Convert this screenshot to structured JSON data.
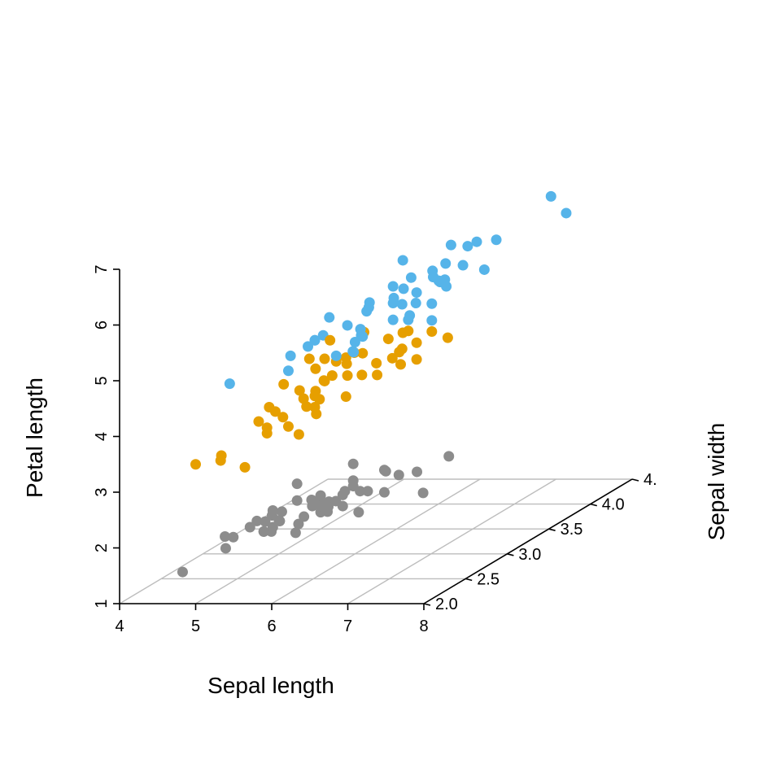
{
  "chart_data": {
    "type": "scatter3d",
    "title": "",
    "xlabel": "Sepal length",
    "ylabel": "Sepal width",
    "zlabel": "Petal length",
    "xlim": [
      4,
      8
    ],
    "ylim": [
      2.0,
      4.5
    ],
    "zlim": [
      1,
      7
    ],
    "x_ticks": [
      "4",
      "5",
      "6",
      "7",
      "8"
    ],
    "y_ticks": [
      "2.0",
      "2.5",
      "3.0",
      "3.5",
      "4.0",
      "4."
    ],
    "z_ticks": [
      "1",
      "2",
      "3",
      "4",
      "5",
      "6",
      "7"
    ],
    "grid": "floor",
    "legend": "none",
    "series": [
      {
        "color": "#8c8c8c",
        "points": [
          [
            5.1,
            3.5,
            1.4
          ],
          [
            4.9,
            3.0,
            1.4
          ],
          [
            4.7,
            3.2,
            1.3
          ],
          [
            4.6,
            3.1,
            1.5
          ],
          [
            5.0,
            3.6,
            1.4
          ],
          [
            5.4,
            3.9,
            1.7
          ],
          [
            4.6,
            3.4,
            1.4
          ],
          [
            5.0,
            3.4,
            1.5
          ],
          [
            4.4,
            2.9,
            1.4
          ],
          [
            4.9,
            3.1,
            1.5
          ],
          [
            5.4,
            3.7,
            1.5
          ],
          [
            4.8,
            3.4,
            1.6
          ],
          [
            4.8,
            3.0,
            1.4
          ],
          [
            4.3,
            3.0,
            1.1
          ],
          [
            5.8,
            4.0,
            1.2
          ],
          [
            5.7,
            4.4,
            1.5
          ],
          [
            5.4,
            3.9,
            1.3
          ],
          [
            5.1,
            3.5,
            1.4
          ],
          [
            5.7,
            3.8,
            1.7
          ],
          [
            5.1,
            3.8,
            1.5
          ],
          [
            5.4,
            3.4,
            1.7
          ],
          [
            5.1,
            3.7,
            1.5
          ],
          [
            4.6,
            3.6,
            1.0
          ],
          [
            5.1,
            3.3,
            1.7
          ],
          [
            4.8,
            3.4,
            1.9
          ],
          [
            5.0,
            3.0,
            1.6
          ],
          [
            5.0,
            3.4,
            1.6
          ],
          [
            5.2,
            3.5,
            1.5
          ],
          [
            5.2,
            3.4,
            1.4
          ],
          [
            4.7,
            3.2,
            1.6
          ],
          [
            4.8,
            3.1,
            1.6
          ],
          [
            5.4,
            3.4,
            1.5
          ],
          [
            5.2,
            4.1,
            1.5
          ],
          [
            5.5,
            4.2,
            1.4
          ],
          [
            4.9,
            3.1,
            1.5
          ],
          [
            5.0,
            3.2,
            1.2
          ],
          [
            5.5,
            3.5,
            1.3
          ],
          [
            4.9,
            3.6,
            1.4
          ],
          [
            4.4,
            3.0,
            1.3
          ],
          [
            5.1,
            3.4,
            1.5
          ],
          [
            5.0,
            3.5,
            1.3
          ],
          [
            4.5,
            2.3,
            1.3
          ],
          [
            4.4,
            3.2,
            1.3
          ],
          [
            5.0,
            3.5,
            1.6
          ],
          [
            5.1,
            3.8,
            1.9
          ],
          [
            4.8,
            3.0,
            1.4
          ],
          [
            5.1,
            3.8,
            1.6
          ],
          [
            4.6,
            3.2,
            1.4
          ],
          [
            5.3,
            3.7,
            1.5
          ],
          [
            5.0,
            3.3,
            1.4
          ]
        ]
      },
      {
        "color": "#e69f00",
        "points": [
          [
            7.0,
            3.2,
            4.7
          ],
          [
            6.4,
            3.2,
            4.5
          ],
          [
            6.9,
            3.1,
            4.9
          ],
          [
            5.5,
            2.3,
            4.0
          ],
          [
            6.5,
            2.8,
            4.6
          ],
          [
            5.7,
            2.8,
            4.5
          ],
          [
            6.3,
            3.3,
            4.7
          ],
          [
            4.9,
            2.4,
            3.3
          ],
          [
            6.6,
            2.9,
            4.6
          ],
          [
            5.2,
            2.7,
            3.9
          ],
          [
            5.0,
            2.0,
            3.5
          ],
          [
            5.9,
            3.0,
            4.2
          ],
          [
            6.0,
            2.2,
            4.0
          ],
          [
            6.1,
            2.9,
            4.7
          ],
          [
            5.6,
            2.9,
            3.6
          ],
          [
            6.7,
            3.1,
            4.4
          ],
          [
            5.6,
            3.0,
            4.5
          ],
          [
            5.8,
            2.7,
            4.1
          ],
          [
            6.2,
            2.2,
            4.5
          ],
          [
            5.6,
            2.5,
            3.9
          ],
          [
            5.9,
            3.2,
            4.8
          ],
          [
            6.1,
            2.8,
            4.0
          ],
          [
            6.3,
            2.5,
            4.9
          ],
          [
            6.1,
            2.8,
            4.7
          ],
          [
            6.4,
            2.9,
            4.3
          ],
          [
            6.6,
            3.0,
            4.4
          ],
          [
            6.8,
            2.8,
            4.8
          ],
          [
            6.7,
            3.0,
            5.0
          ],
          [
            6.0,
            2.9,
            4.5
          ],
          [
            5.7,
            2.6,
            3.5
          ],
          [
            5.5,
            2.4,
            3.8
          ],
          [
            5.5,
            2.4,
            3.7
          ],
          [
            5.8,
            2.7,
            3.9
          ],
          [
            6.0,
            2.7,
            5.1
          ],
          [
            5.4,
            3.0,
            4.5
          ],
          [
            6.0,
            3.4,
            4.5
          ],
          [
            6.7,
            3.1,
            4.7
          ],
          [
            6.3,
            2.3,
            4.4
          ],
          [
            5.6,
            3.0,
            4.1
          ],
          [
            5.5,
            2.5,
            4.0
          ],
          [
            5.5,
            2.6,
            4.4
          ],
          [
            6.1,
            3.0,
            4.6
          ],
          [
            5.8,
            2.6,
            4.0
          ],
          [
            5.0,
            2.3,
            3.3
          ],
          [
            5.6,
            2.7,
            4.2
          ],
          [
            5.7,
            3.0,
            4.2
          ],
          [
            5.7,
            2.9,
            4.2
          ],
          [
            6.2,
            2.9,
            4.3
          ],
          [
            5.1,
            2.5,
            3.0
          ],
          [
            5.7,
            2.8,
            4.1
          ]
        ]
      },
      {
        "color": "#56b4e9",
        "points": [
          [
            6.3,
            3.3,
            6.0
          ],
          [
            5.8,
            2.7,
            5.1
          ],
          [
            7.1,
            3.0,
            5.9
          ],
          [
            6.3,
            2.9,
            5.6
          ],
          [
            6.5,
            3.0,
            5.8
          ],
          [
            7.6,
            3.0,
            6.6
          ],
          [
            4.9,
            2.5,
            4.5
          ],
          [
            7.3,
            2.9,
            6.3
          ],
          [
            6.7,
            2.5,
            5.8
          ],
          [
            7.2,
            3.6,
            6.1
          ],
          [
            6.5,
            3.2,
            5.1
          ],
          [
            6.4,
            2.7,
            5.3
          ],
          [
            6.8,
            3.0,
            5.5
          ],
          [
            5.7,
            2.5,
            5.0
          ],
          [
            5.8,
            2.8,
            5.1
          ],
          [
            6.4,
            3.2,
            5.3
          ],
          [
            6.5,
            3.0,
            5.5
          ],
          [
            7.7,
            3.8,
            6.7
          ],
          [
            7.7,
            2.6,
            6.9
          ],
          [
            6.0,
            2.2,
            5.0
          ],
          [
            6.9,
            3.2,
            5.7
          ],
          [
            5.6,
            2.8,
            4.9
          ],
          [
            7.7,
            2.8,
            6.7
          ],
          [
            6.3,
            2.7,
            4.9
          ],
          [
            6.7,
            3.3,
            5.7
          ],
          [
            7.2,
            3.2,
            6.0
          ],
          [
            6.2,
            2.8,
            4.8
          ],
          [
            6.1,
            3.0,
            4.9
          ],
          [
            6.4,
            2.8,
            5.6
          ],
          [
            7.2,
            3.0,
            5.8
          ],
          [
            7.4,
            2.8,
            6.1
          ],
          [
            7.9,
            3.8,
            6.4
          ],
          [
            6.4,
            2.8,
            5.6
          ],
          [
            6.3,
            2.8,
            5.1
          ],
          [
            6.1,
            2.6,
            5.6
          ],
          [
            7.7,
            3.0,
            6.1
          ],
          [
            6.3,
            3.4,
            5.6
          ],
          [
            6.4,
            3.1,
            5.5
          ],
          [
            6.0,
            3.0,
            4.8
          ],
          [
            6.9,
            3.1,
            5.4
          ],
          [
            6.7,
            3.1,
            5.6
          ],
          [
            6.9,
            3.1,
            5.1
          ],
          [
            5.8,
            2.7,
            5.1
          ],
          [
            6.8,
            3.2,
            5.9
          ],
          [
            6.7,
            3.3,
            5.7
          ],
          [
            6.7,
            3.0,
            5.2
          ],
          [
            6.3,
            2.5,
            5.0
          ],
          [
            6.5,
            3.0,
            5.2
          ],
          [
            6.2,
            3.4,
            5.4
          ],
          [
            5.9,
            3.0,
            5.1
          ]
        ]
      }
    ]
  }
}
